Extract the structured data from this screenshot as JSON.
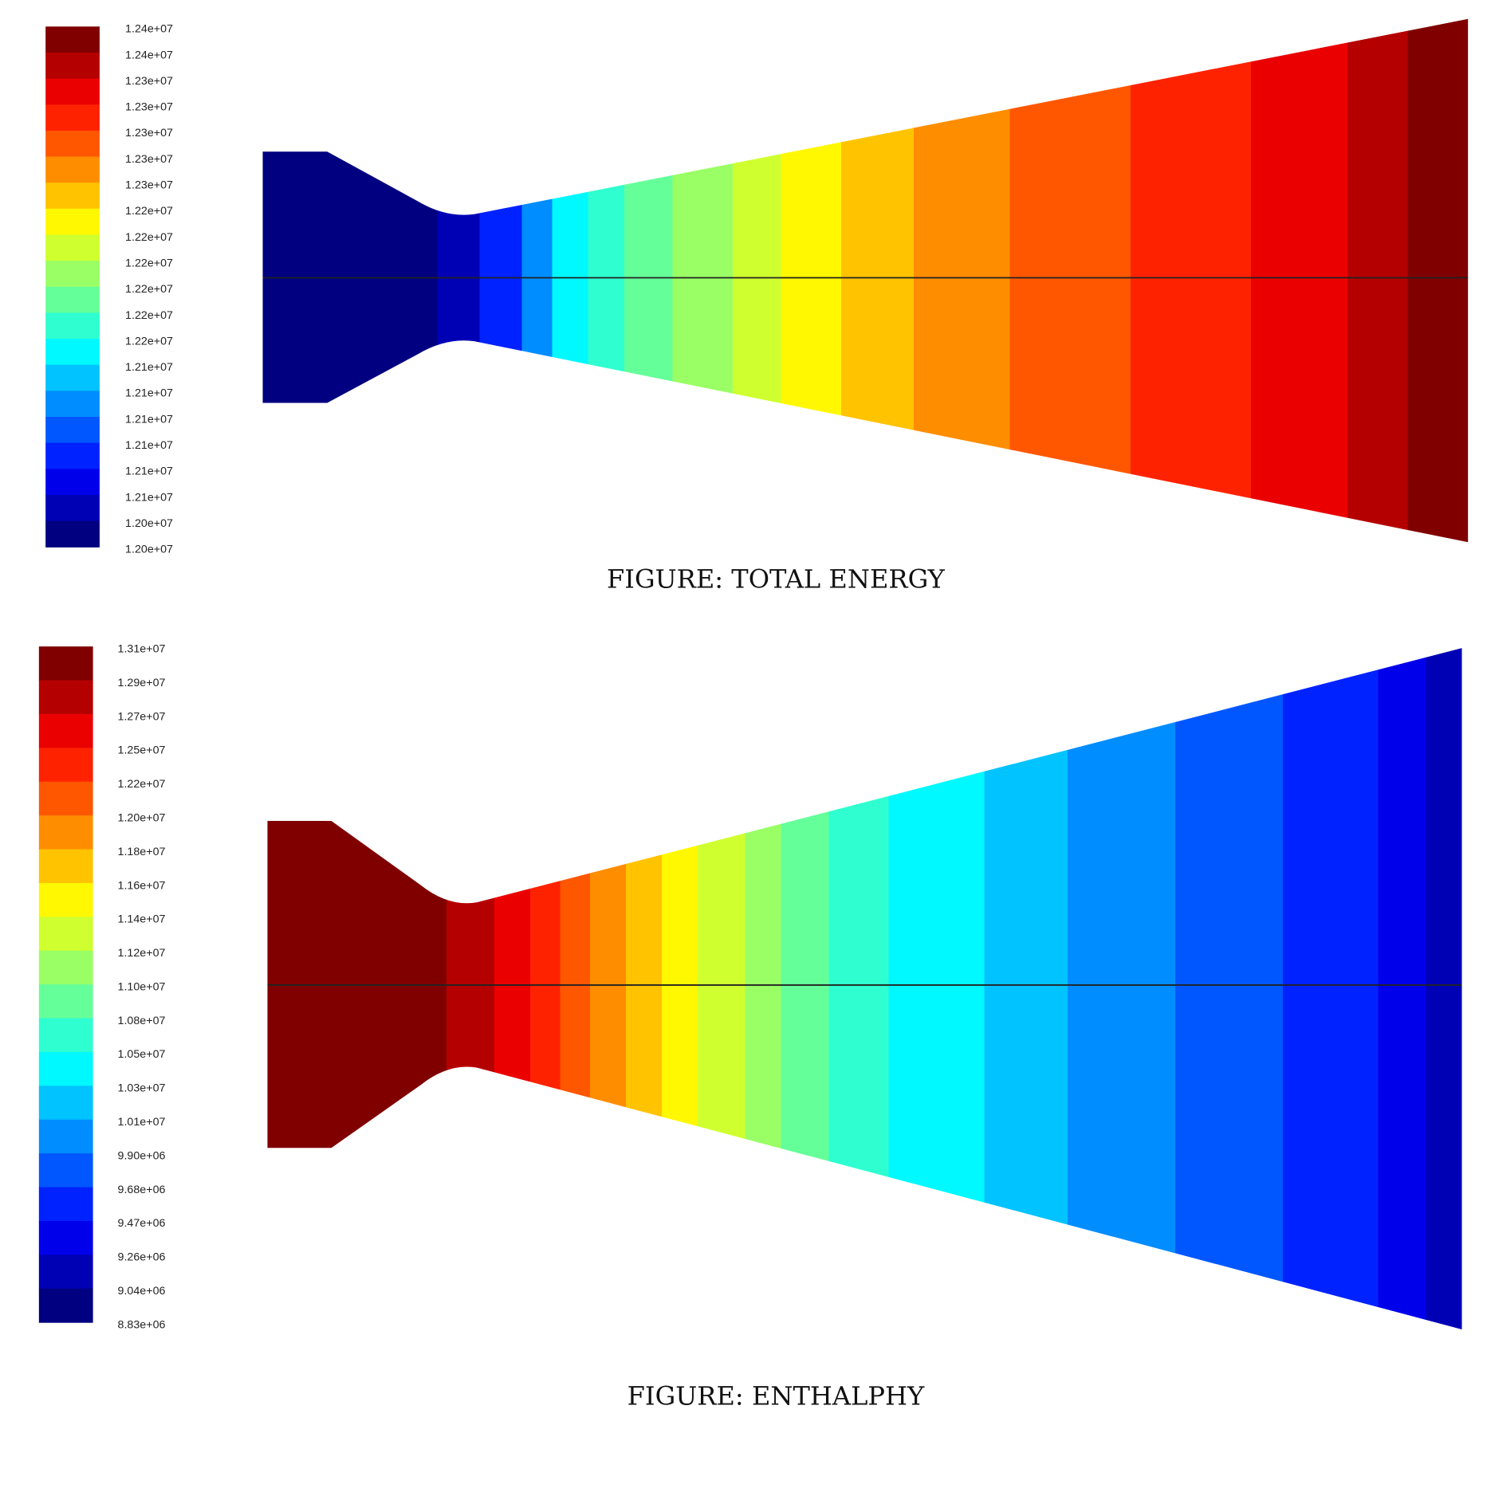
{
  "figures": [
    {
      "caption": "FIGURE: TOTAL ENERGY",
      "colorbar_labels": [
        "1.24e+07",
        "1.24e+07",
        "1.23e+07",
        "1.23e+07",
        "1.23e+07",
        "1.23e+07",
        "1.23e+07",
        "1.22e+07",
        "1.22e+07",
        "1.22e+07",
        "1.22e+07",
        "1.22e+07",
        "1.22e+07",
        "1.21e+07",
        "1.21e+07",
        "1.21e+07",
        "1.21e+07",
        "1.21e+07",
        "1.21e+07",
        "1.20e+07",
        "1.20e+07"
      ]
    },
    {
      "caption": "FIGURE: ENTHALPHY",
      "colorbar_labels": [
        "1.31e+07",
        "1.29e+07",
        "1.27e+07",
        "1.25e+07",
        "1.22e+07",
        "1.20e+07",
        "1.18e+07",
        "1.16e+07",
        "1.14e+07",
        "1.12e+07",
        "1.10e+07",
        "1.08e+07",
        "1.05e+07",
        "1.03e+07",
        "1.01e+07",
        "9.90e+06",
        "9.68e+06",
        "9.47e+06",
        "9.26e+06",
        "9.04e+06",
        "8.83e+06"
      ]
    }
  ]
}
